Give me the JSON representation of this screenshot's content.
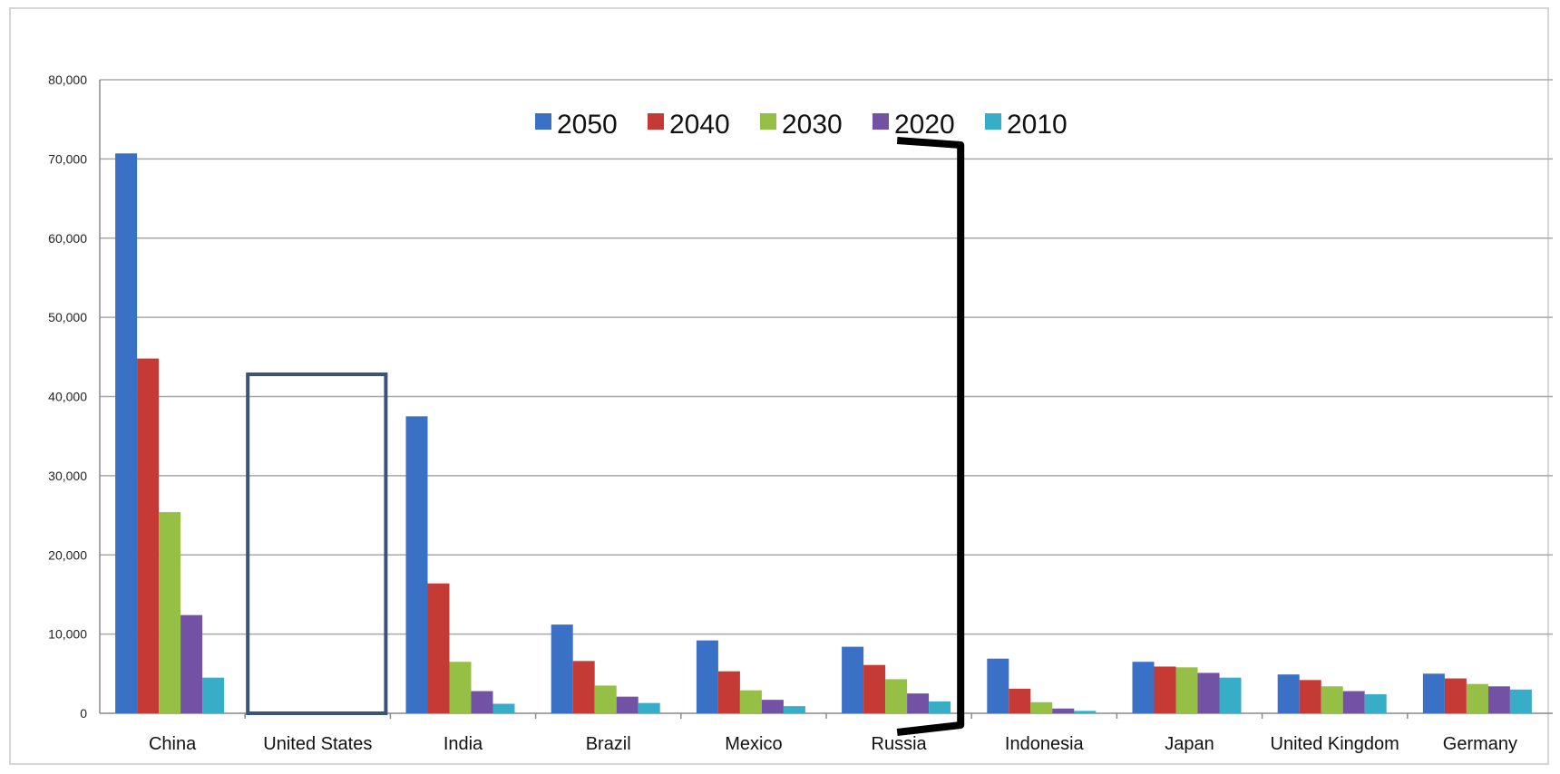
{
  "chart_data": {
    "type": "bar",
    "categories": [
      "China",
      "United States",
      "India",
      "Brazil",
      "Mexico",
      "Russia",
      "Indonesia",
      "Japan",
      "United Kingdom",
      "Germany"
    ],
    "series": [
      {
        "name": "2050",
        "color": "#3a70c6",
        "values": [
          70700,
          null,
          37500,
          11200,
          9200,
          8400,
          6900,
          6500,
          4900,
          5000
        ]
      },
      {
        "name": "2040",
        "color": "#c63a36",
        "values": [
          44800,
          null,
          16400,
          6600,
          5300,
          6100,
          3100,
          5900,
          4200,
          4400
        ]
      },
      {
        "name": "2030",
        "color": "#96c045",
        "values": [
          25400,
          null,
          6500,
          3500,
          2900,
          4300,
          1400,
          5800,
          3400,
          3700
        ]
      },
      {
        "name": "2020",
        "color": "#7351a4",
        "values": [
          12400,
          null,
          2800,
          2100,
          1700,
          2500,
          600,
          5100,
          2800,
          3400
        ]
      },
      {
        "name": "2010",
        "color": "#38adc8",
        "values": [
          4500,
          null,
          1200,
          1300,
          900,
          1500,
          300,
          4500,
          2400,
          3000
        ]
      }
    ],
    "yticks": [
      "0",
      "10,000",
      "20,000",
      "30,000",
      "40,000",
      "50,000",
      "60,000",
      "70,000",
      "80,000"
    ],
    "ylim": [
      0,
      80000
    ],
    "grid": true,
    "legend_position": "top-center",
    "annotations": {
      "box_category": "United States",
      "bracket_after_category": "Russia"
    }
  }
}
